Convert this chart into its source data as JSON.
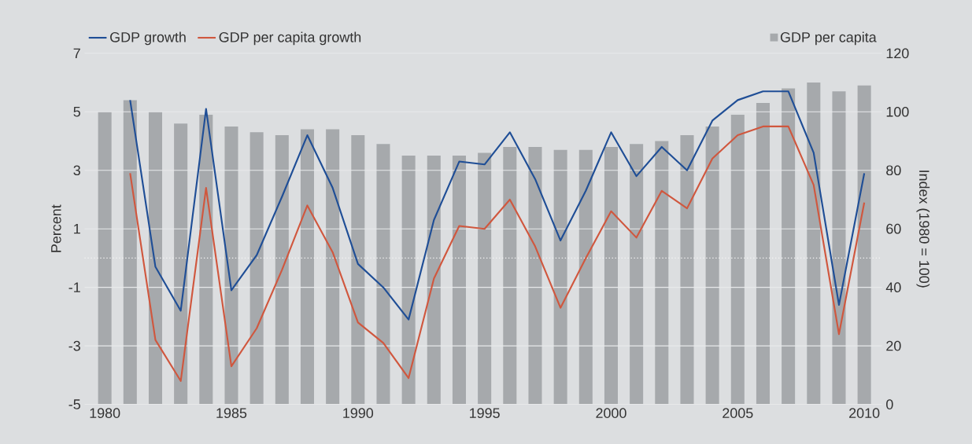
{
  "chart_data": {
    "type": "line",
    "ylabel": "Percent",
    "y2label": "Index (1980 = 100)",
    "x": [
      1980,
      1981,
      1982,
      1983,
      1984,
      1985,
      1986,
      1987,
      1988,
      1989,
      1990,
      1991,
      1992,
      1993,
      1994,
      1995,
      1996,
      1997,
      1998,
      1999,
      2000,
      2001,
      2002,
      2003,
      2004,
      2005,
      2006,
      2007,
      2008,
      2009,
      2010
    ],
    "series": [
      {
        "name": "GDP per capita",
        "type": "bar",
        "axis": "y2",
        "color": "#a6a9ac",
        "values": [
          100,
          104,
          100,
          96,
          99,
          95,
          93,
          92,
          94,
          94,
          92,
          89,
          85,
          85,
          85,
          86,
          88,
          88,
          87,
          87,
          88,
          89,
          90,
          92,
          95,
          99,
          103,
          108,
          110,
          107,
          109
        ]
      },
      {
        "name": "GDP growth",
        "color": "#1f4e96",
        "values": [
          null,
          5.4,
          -0.3,
          -1.8,
          5.1,
          -1.1,
          0.1,
          2.1,
          4.2,
          2.4,
          -0.2,
          -1.0,
          -2.1,
          1.3,
          3.3,
          3.2,
          4.3,
          2.7,
          0.6,
          2.3,
          4.3,
          2.8,
          3.8,
          3.0,
          4.7,
          5.4,
          5.7,
          5.7,
          3.6,
          -1.6,
          2.9
        ]
      },
      {
        "name": "GDP per capita growth",
        "color": "#d0573e",
        "values": [
          null,
          2.9,
          -2.8,
          -4.2,
          2.4,
          -3.7,
          -2.4,
          -0.4,
          1.8,
          0.2,
          -2.2,
          -2.9,
          -4.1,
          -0.7,
          1.1,
          1.0,
          2.0,
          0.4,
          -1.7,
          0.0,
          1.6,
          0.7,
          2.3,
          1.7,
          3.4,
          4.2,
          4.5,
          4.5,
          2.5,
          -2.6,
          1.9
        ]
      }
    ],
    "xlim": [
      1979.2,
      2010.7
    ],
    "xticks": [
      1980,
      1985,
      1990,
      1995,
      2000,
      2005,
      2010
    ],
    "ylim": [
      -5,
      7
    ],
    "yticks": [
      -5,
      -3,
      -1,
      1,
      3,
      5,
      7
    ],
    "y2lim": [
      0,
      120
    ],
    "y2ticks": [
      0,
      20,
      40,
      60,
      80,
      100,
      120
    ],
    "grid": "y",
    "legend": "top",
    "ref_lines": [
      {
        "axis": "y",
        "value": 0,
        "color": "#f4f4f4",
        "line_style": "dotted"
      }
    ]
  }
}
